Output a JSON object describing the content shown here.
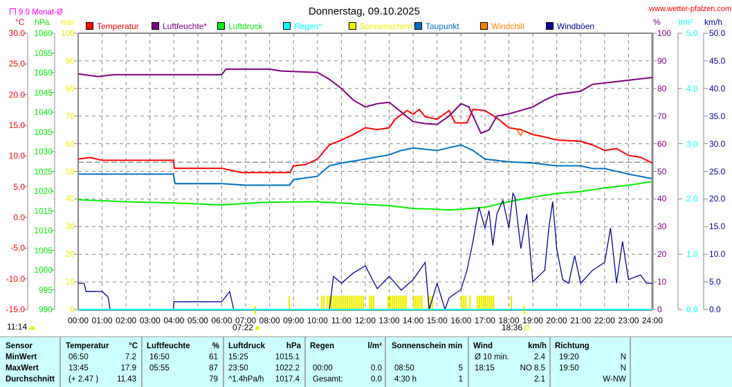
{
  "title": "Donnerstag, 09.10.2025",
  "site": "www.wetter-pfalzen.com",
  "month_avg_label": "9.0 Monat-Ø",
  "month_avg_value": 9.0,
  "colors": {
    "temp": "#ff0000",
    "hum": "#800080",
    "press": "#00ee00",
    "rain": "#00ffff",
    "sun": "#eeee00",
    "dew": "#0070c0",
    "chill": "#ff8000",
    "gust": "#000099"
  },
  "chart_data": {
    "type": "line",
    "title": "Donnerstag, 09.10.2025",
    "x_ticks": [
      "00:00",
      "01:00",
      "02:00",
      "03:00",
      "04:00",
      "05:00",
      "06:00",
      "07:00",
      "08:00",
      "09:00",
      "10:00",
      "11:00",
      "12:00",
      "13:00",
      "14:00",
      "15:00",
      "16:00",
      "17:00",
      "18:00",
      "19:00",
      "20:00",
      "21:00",
      "22:00",
      "23:00",
      "24:00"
    ],
    "axes": {
      "temp": {
        "unit": "°C",
        "range": [
          -15,
          30
        ],
        "ticks": [
          "30.0",
          "25.0",
          "20.0",
          "15.0",
          "10.0",
          "5.0",
          "0.0",
          "-5.0",
          "-10.0",
          "-15.0"
        ]
      },
      "press": {
        "unit": "hPa",
        "range": [
          990,
          1060
        ],
        "ticks": [
          "1060",
          "1055",
          "1050",
          "1045",
          "1040",
          "1035",
          "1030",
          "1025",
          "1020",
          "1015",
          "1010",
          "1005",
          "1000",
          "995",
          "990"
        ]
      },
      "sun": {
        "unit": "min",
        "range": [
          0,
          100
        ],
        "ticks": [
          "100",
          "90",
          "80",
          "70",
          "60",
          "50",
          "40",
          "30",
          "20",
          "10",
          "0"
        ]
      },
      "hum": {
        "unit": "%",
        "range": [
          0,
          100
        ],
        "ticks": [
          "100",
          "90",
          "80",
          "70",
          "60",
          "50",
          "40",
          "30",
          "20",
          "10",
          "0"
        ]
      },
      "rain": {
        "unit": "l/m²",
        "range": [
          0,
          5
        ],
        "ticks": [
          "5.0",
          "4.0",
          "3.0",
          "2.0",
          "1.0",
          "0.0"
        ]
      },
      "gust": {
        "unit": "km/h",
        "range": [
          0,
          50
        ],
        "ticks": [
          "50.0",
          "45.0",
          "40.0",
          "35.0",
          "30.0",
          "25.0",
          "20.0",
          "15.0",
          "10.0",
          "5.0",
          "0.0"
        ]
      }
    },
    "legend": [
      {
        "key": "temp",
        "label": "Temperatur"
      },
      {
        "key": "hum",
        "label": "Luftfeuchte*"
      },
      {
        "key": "press",
        "label": "Luftdruck"
      },
      {
        "key": "rain",
        "label": "Regen*"
      },
      {
        "key": "sun",
        "label": "Sonnenschein"
      },
      {
        "key": "dew",
        "label": "Taupunkt"
      },
      {
        "key": "chill",
        "label": "Windchill"
      },
      {
        "key": "gust",
        "label": "Windböen"
      }
    ],
    "series": {
      "temp": {
        "axis": "temp",
        "points": [
          [
            0,
            9.5
          ],
          [
            0.5,
            9.75
          ],
          [
            1,
            9.3
          ],
          [
            3.98,
            9.3
          ],
          [
            4.02,
            8.0
          ],
          [
            6,
            8.0
          ],
          [
            6.83,
            7.3
          ],
          [
            8.85,
            7.3
          ],
          [
            9,
            8.4
          ],
          [
            9.5,
            8.6
          ],
          [
            10,
            9.5
          ],
          [
            10.5,
            11.8
          ],
          [
            11,
            12.6
          ],
          [
            11.5,
            13.5
          ],
          [
            12,
            14.6
          ],
          [
            12.5,
            14.3
          ],
          [
            13,
            14.6
          ],
          [
            13.25,
            16.0
          ],
          [
            13.75,
            17.4
          ],
          [
            14,
            16.8
          ],
          [
            14.25,
            17.6
          ],
          [
            14.5,
            16.4
          ],
          [
            15,
            16.0
          ],
          [
            15.5,
            17.4
          ],
          [
            15.75,
            15.4
          ],
          [
            16.25,
            15.4
          ],
          [
            16.5,
            17.6
          ],
          [
            17,
            17.4
          ],
          [
            17.5,
            16.2
          ],
          [
            18,
            14.6
          ],
          [
            18.5,
            14.3
          ],
          [
            19,
            13.5
          ],
          [
            19.5,
            13.1
          ],
          [
            20,
            12.6
          ],
          [
            21,
            12.4
          ],
          [
            21.5,
            11.8
          ],
          [
            22,
            10.9
          ],
          [
            22.5,
            11.2
          ],
          [
            23,
            10.1
          ],
          [
            23.5,
            9.8
          ],
          [
            24,
            8.85
          ]
        ]
      },
      "hum": {
        "axis": "hum",
        "points": [
          [
            0,
            85.3
          ],
          [
            0.83,
            84.3
          ],
          [
            1.5,
            85
          ],
          [
            6,
            85
          ],
          [
            6.17,
            87
          ],
          [
            8,
            87
          ],
          [
            8.5,
            86.3
          ],
          [
            10,
            85.8
          ],
          [
            10.5,
            83.3
          ],
          [
            11,
            80
          ],
          [
            11.5,
            75.8
          ],
          [
            12,
            73.3
          ],
          [
            12.5,
            74.5
          ],
          [
            13,
            75
          ],
          [
            13.5,
            71.5
          ],
          [
            14,
            68
          ],
          [
            14.5,
            67.3
          ],
          [
            15,
            67
          ],
          [
            15.5,
            70
          ],
          [
            16,
            74.5
          ],
          [
            16.33,
            73.3
          ],
          [
            16.83,
            63.8
          ],
          [
            17.17,
            65
          ],
          [
            17.5,
            70
          ],
          [
            18,
            70.8
          ],
          [
            19,
            73.3
          ],
          [
            19.5,
            75.8
          ],
          [
            20,
            77.8
          ],
          [
            21,
            79
          ],
          [
            21.5,
            81.5
          ],
          [
            22,
            82
          ],
          [
            23,
            83
          ],
          [
            24,
            84
          ]
        ]
      },
      "press": {
        "axis": "press",
        "points": [
          [
            0,
            1017.8
          ],
          [
            2,
            1017.3
          ],
          [
            4,
            1017.0
          ],
          [
            6,
            1016.5
          ],
          [
            8,
            1017.2
          ],
          [
            10,
            1017.3
          ],
          [
            12,
            1016.6
          ],
          [
            13,
            1016.3
          ],
          [
            14,
            1015.6
          ],
          [
            15,
            1015.4
          ],
          [
            15.42,
            1015.2
          ],
          [
            16,
            1015.4
          ],
          [
            17,
            1015.9
          ],
          [
            18,
            1017.3
          ],
          [
            19,
            1018.5
          ],
          [
            20,
            1019.4
          ],
          [
            21,
            1019.9
          ],
          [
            22,
            1020.8
          ],
          [
            23,
            1021.5
          ],
          [
            24,
            1022.4
          ]
        ]
      },
      "dew": {
        "axis": "temp",
        "points": [
          [
            0,
            7.05
          ],
          [
            3.98,
            7.05
          ],
          [
            4.05,
            5.5
          ],
          [
            6,
            5.5
          ],
          [
            7,
            5.25
          ],
          [
            8.83,
            5.25
          ],
          [
            9,
            6.15
          ],
          [
            10,
            6.7
          ],
          [
            10.5,
            8.4
          ],
          [
            11,
            8.85
          ],
          [
            12,
            9.5
          ],
          [
            13,
            10.2
          ],
          [
            13.5,
            10.9
          ],
          [
            14,
            11.3
          ],
          [
            15,
            10.9
          ],
          [
            16,
            11.8
          ],
          [
            16.5,
            10.9
          ],
          [
            17,
            9.5
          ],
          [
            18,
            9.05
          ],
          [
            19,
            8.85
          ],
          [
            20,
            8.4
          ],
          [
            21,
            8.4
          ],
          [
            21.5,
            7.95
          ],
          [
            22,
            7.95
          ],
          [
            23,
            7.05
          ],
          [
            24,
            6.3
          ]
        ]
      },
      "chill": {
        "axis": "temp",
        "points": [
          [
            18.3,
            14.4
          ],
          [
            18.5,
            13.4
          ],
          [
            18.6,
            14.2
          ]
        ]
      },
      "gust": {
        "axis": "gust",
        "points": [
          [
            0,
            4.75
          ],
          [
            0.25,
            4.75
          ],
          [
            0.33,
            3.25
          ],
          [
            1,
            3.25
          ],
          [
            1.25,
            2.25
          ],
          [
            1.33,
            0
          ],
          [
            3.98,
            0
          ],
          [
            4.0,
            1.4
          ],
          [
            6,
            1.4
          ],
          [
            6.33,
            3.25
          ],
          [
            6.5,
            0
          ],
          [
            10.5,
            0
          ],
          [
            10.67,
            6
          ],
          [
            11,
            4.75
          ],
          [
            11.5,
            6.6
          ],
          [
            12,
            7.9
          ],
          [
            12.5,
            3.75
          ],
          [
            13,
            6
          ],
          [
            13.5,
            3.5
          ],
          [
            14,
            5.4
          ],
          [
            14.5,
            8.5
          ],
          [
            14.67,
            0
          ],
          [
            15,
            4.75
          ],
          [
            15.33,
            0
          ],
          [
            15.5,
            2.1
          ],
          [
            16,
            3.6
          ],
          [
            16.25,
            7.1
          ],
          [
            16.5,
            12.3
          ],
          [
            16.75,
            18.5
          ],
          [
            17,
            14.75
          ],
          [
            17.17,
            17.9
          ],
          [
            17.33,
            11.6
          ],
          [
            17.5,
            17.3
          ],
          [
            17.75,
            19.75
          ],
          [
            18,
            14.75
          ],
          [
            18.17,
            21
          ],
          [
            18.25,
            20.4
          ],
          [
            18.5,
            11
          ],
          [
            18.75,
            17.3
          ],
          [
            19,
            5
          ],
          [
            19.5,
            7.1
          ],
          [
            19.67,
            14.75
          ],
          [
            19.83,
            19.5
          ],
          [
            20,
            11
          ],
          [
            20.25,
            5.4
          ],
          [
            20.5,
            4.75
          ],
          [
            20.75,
            9.75
          ],
          [
            21,
            4.75
          ],
          [
            21.5,
            7.1
          ],
          [
            22,
            8.5
          ],
          [
            22.25,
            14.75
          ],
          [
            22.5,
            4.75
          ],
          [
            22.75,
            12.3
          ],
          [
            23,
            5.4
          ],
          [
            23.5,
            6.25
          ],
          [
            23.75,
            4.75
          ],
          [
            24,
            4.75
          ]
        ]
      },
      "rain": {
        "axis": "rain",
        "points": [
          [
            0,
            0
          ],
          [
            24,
            0
          ]
        ]
      }
    },
    "sunshine_minutes_per_5min": 5,
    "sunshine_intervals": [
      [
        8.79,
        8.84
      ],
      [
        10.15,
        10.3
      ],
      [
        10.38,
        11.88
      ],
      [
        12.15,
        12.32
      ],
      [
        12.93,
        13.74
      ],
      [
        14.0,
        14.4
      ],
      [
        14.6,
        14.78
      ],
      [
        16.0,
        16.22
      ],
      [
        16.34,
        16.4
      ],
      [
        16.66,
        17.38
      ],
      [
        18.07,
        18.13
      ]
    ],
    "sunrise": {
      "label": "07:22",
      "hour": 7.367
    },
    "sunset": {
      "label": "18:36",
      "hour": 18.6
    },
    "current_time": "11:14"
  },
  "table": {
    "headers": [
      "Sensor",
      "Temperatur",
      "°C",
      "Luftfeuchte",
      "%",
      "Luftdruck",
      "hPa",
      "Regen",
      "l/m²",
      "Sonnenschein min",
      "Wind",
      "km/h",
      "Richtung"
    ],
    "rows": [
      {
        "label": "MinWert",
        "temp_t": "06:50",
        "temp_v": "7.2",
        "hum_t": "16:50",
        "hum_v": "61",
        "press_t": "15:25",
        "press_v": "1015.1",
        "rain_t": "",
        "rain_v": "",
        "sun_t": "",
        "sun_v": "",
        "wind_t": "Ø 10 min.",
        "wind_v": "2.4",
        "dir_t": "19:20",
        "dir_v": "N"
      },
      {
        "label": "MaxWert",
        "temp_t": "13:45",
        "temp_v": "17.9",
        "hum_t": "05:55",
        "hum_v": "87",
        "press_t": "23:50",
        "press_v": "1022.2",
        "rain_t": "00:00",
        "rain_v": "0.0",
        "sun_t": "08:50",
        "sun_v": "5",
        "wind_t": "18:15",
        "wind_v": "NO 8.5",
        "dir_t": "19:50",
        "dir_v": "N"
      },
      {
        "label": "Durchschnitt",
        "temp_t": "(+ 2.47 )",
        "temp_v": "11.43",
        "hum_t": "",
        "hum_v": "79",
        "press_t": "^1.4hPa/h",
        "press_v": "1017.4",
        "rain_t": "Gesamt:",
        "rain_v": "0.0",
        "sun_t": "4:30 h",
        "sun_v": "1",
        "wind_t": "",
        "wind_v": "2.1",
        "dir_t": "",
        "dir_v": "W-NW"
      }
    ]
  }
}
